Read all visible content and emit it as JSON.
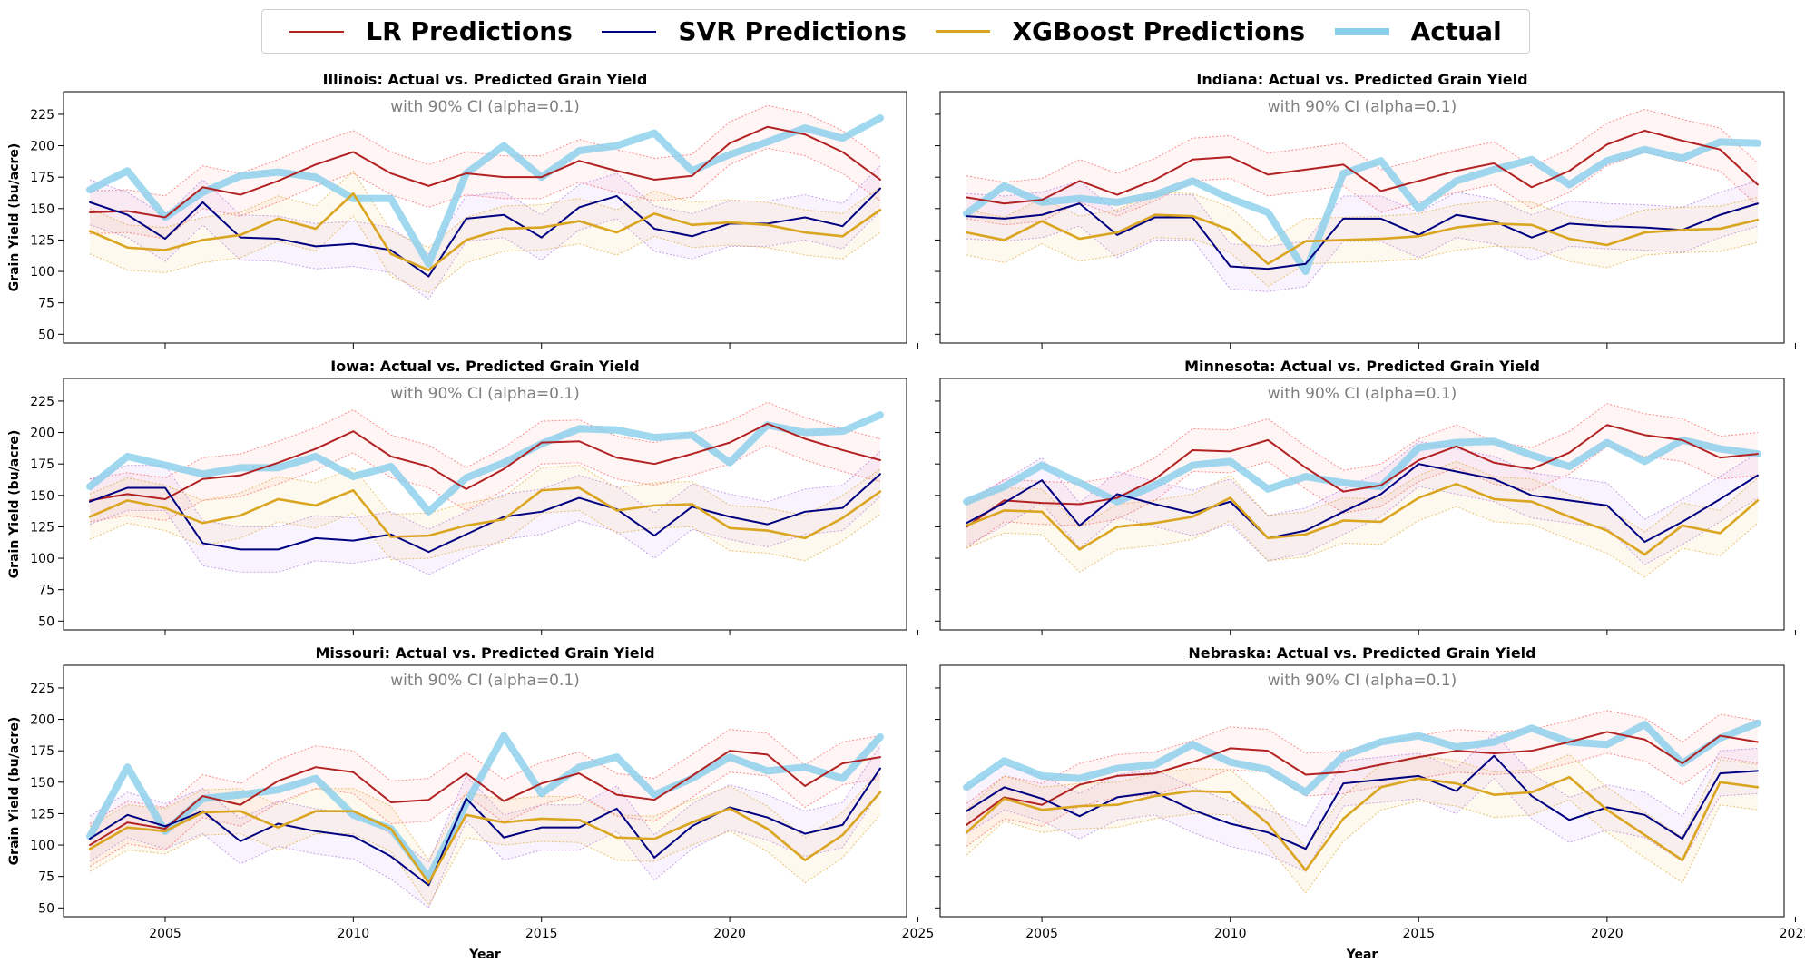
{
  "legend": {
    "items": [
      {
        "label": "LR Predictions",
        "color": "#b22222",
        "key": "lr"
      },
      {
        "label": "SVR Predictions",
        "color": "#000080",
        "key": "svr"
      },
      {
        "label": "XGBoost Predictions",
        "color": "#daa520",
        "key": "xgb"
      },
      {
        "label": "Actual",
        "color": "#87ceeb",
        "key": "actual"
      }
    ],
    "placement": "top-center"
  },
  "shared": {
    "subtitle": "with 90% CI (alpha=0.1)",
    "xlabel": "Year",
    "ylabel": "Grain Yield (bu/acre)",
    "xlim": [
      2002.3,
      2024.7
    ],
    "ylim": [
      43,
      243
    ],
    "xticks": [
      2005,
      2010,
      2015,
      2020,
      2025
    ],
    "yticks": [
      50,
      75,
      100,
      125,
      150,
      175,
      200,
      225
    ],
    "grid": false
  },
  "chart_data": [
    {
      "type": "line",
      "title": "Illinois: Actual vs. Predicted Grain Yield",
      "x": [
        2003,
        2004,
        2005,
        2006,
        2007,
        2008,
        2009,
        2010,
        2011,
        2012,
        2013,
        2014,
        2015,
        2016,
        2017,
        2018,
        2019,
        2020,
        2021,
        2022,
        2023,
        2024
      ],
      "series": [
        {
          "name": "LR Predictions",
          "key": "lr",
          "values": [
            147,
            148,
            143,
            167,
            161,
            172,
            185,
            195,
            178,
            168,
            178,
            175,
            175,
            188,
            180,
            173,
            176,
            202,
            215,
            209,
            195,
            173
          ],
          "ci_halfwidth": 17
        },
        {
          "name": "SVR Predictions",
          "key": "svr",
          "values": [
            155,
            145,
            126,
            155,
            127,
            126,
            120,
            122,
            117,
            96,
            142,
            145,
            127,
            151,
            160,
            134,
            128,
            138,
            138,
            143,
            136,
            166
          ],
          "ci_halfwidth": 18
        },
        {
          "name": "XGBoost Predictions",
          "key": "xgb",
          "values": [
            132,
            119,
            117,
            125,
            129,
            142,
            134,
            162,
            114,
            101,
            125,
            134,
            135,
            140,
            131,
            146,
            137,
            139,
            137,
            131,
            128,
            149
          ],
          "ci_halfwidth": 18
        },
        {
          "name": "Actual",
          "key": "actual",
          "values": [
            165,
            180,
            143,
            163,
            176,
            179,
            175,
            158,
            158,
            106,
            178,
            200,
            175,
            196,
            200,
            210,
            180,
            193,
            203,
            214,
            206,
            222
          ]
        }
      ]
    },
    {
      "type": "line",
      "title": "Indiana: Actual vs. Predicted Grain Yield",
      "x": [
        2003,
        2004,
        2005,
        2006,
        2007,
        2008,
        2009,
        2010,
        2011,
        2012,
        2013,
        2014,
        2015,
        2016,
        2017,
        2018,
        2019,
        2020,
        2021,
        2022,
        2023,
        2024
      ],
      "series": [
        {
          "name": "LR Predictions",
          "key": "lr",
          "values": [
            159,
            154,
            157,
            172,
            161,
            173,
            189,
            191,
            177,
            181,
            185,
            164,
            172,
            180,
            186,
            167,
            180,
            201,
            212,
            204,
            197,
            169
          ],
          "ci_halfwidth": 17
        },
        {
          "name": "SVR Predictions",
          "key": "svr",
          "values": [
            144,
            142,
            145,
            154,
            129,
            143,
            143,
            104,
            102,
            106,
            142,
            142,
            129,
            145,
            140,
            127,
            138,
            136,
            135,
            133,
            145,
            154
          ],
          "ci_halfwidth": 18
        },
        {
          "name": "XGBoost Predictions",
          "key": "xgb",
          "values": [
            131,
            125,
            140,
            126,
            131,
            145,
            144,
            133,
            106,
            124,
            125,
            126,
            128,
            135,
            138,
            137,
            126,
            121,
            131,
            133,
            134,
            141
          ],
          "ci_halfwidth": 18
        },
        {
          "name": "Actual",
          "key": "actual",
          "values": [
            146,
            168,
            155,
            158,
            155,
            161,
            172,
            158,
            147,
            100,
            178,
            188,
            150,
            172,
            181,
            189,
            169,
            188,
            197,
            190,
            203,
            202
          ]
        }
      ]
    },
    {
      "type": "line",
      "title": "Iowa: Actual vs. Predicted Grain Yield",
      "x": [
        2003,
        2004,
        2005,
        2006,
        2007,
        2008,
        2009,
        2010,
        2011,
        2012,
        2013,
        2014,
        2015,
        2016,
        2017,
        2018,
        2019,
        2020,
        2021,
        2022,
        2023,
        2024
      ],
      "series": [
        {
          "name": "LR Predictions",
          "key": "lr",
          "values": [
            146,
            151,
            147,
            163,
            166,
            176,
            187,
            201,
            181,
            173,
            155,
            171,
            192,
            193,
            180,
            175,
            183,
            192,
            207,
            195,
            186,
            178
          ],
          "ci_halfwidth": 17
        },
        {
          "name": "SVR Predictions",
          "key": "svr",
          "values": [
            145,
            156,
            156,
            112,
            107,
            107,
            116,
            114,
            119,
            105,
            119,
            133,
            137,
            148,
            139,
            118,
            141,
            133,
            127,
            137,
            140,
            167
          ],
          "ci_halfwidth": 18
        },
        {
          "name": "XGBoost Predictions",
          "key": "xgb",
          "values": [
            133,
            146,
            140,
            128,
            134,
            147,
            142,
            154,
            117,
            118,
            126,
            131,
            154,
            156,
            138,
            142,
            143,
            124,
            122,
            116,
            132,
            153
          ],
          "ci_halfwidth": 18
        },
        {
          "name": "Actual",
          "key": "actual",
          "values": [
            157,
            181,
            174,
            167,
            172,
            172,
            181,
            165,
            173,
            137,
            164,
            176,
            191,
            203,
            202,
            196,
            198,
            176,
            206,
            200,
            201,
            214
          ]
        }
      ]
    },
    {
      "type": "line",
      "title": "Minnesota: Actual vs. Predicted Grain Yield",
      "x": [
        2003,
        2004,
        2005,
        2006,
        2007,
        2008,
        2009,
        2010,
        2011,
        2012,
        2013,
        2014,
        2015,
        2016,
        2017,
        2018,
        2019,
        2020,
        2021,
        2022,
        2023,
        2024
      ],
      "series": [
        {
          "name": "LR Predictions",
          "key": "lr",
          "values": [
            125,
            146,
            144,
            143,
            148,
            163,
            186,
            185,
            194,
            172,
            153,
            158,
            178,
            189,
            176,
            171,
            184,
            206,
            198,
            194,
            180,
            183
          ],
          "ci_halfwidth": 17
        },
        {
          "name": "SVR Predictions",
          "key": "svr",
          "values": [
            128,
            144,
            162,
            126,
            151,
            143,
            136,
            145,
            116,
            122,
            137,
            151,
            175,
            169,
            163,
            150,
            146,
            142,
            113,
            129,
            147,
            166
          ],
          "ci_halfwidth": 18
        },
        {
          "name": "XGBoost Predictions",
          "key": "xgb",
          "values": [
            126,
            138,
            137,
            107,
            125,
            128,
            133,
            148,
            116,
            119,
            130,
            129,
            148,
            159,
            147,
            145,
            133,
            122,
            103,
            126,
            120,
            146
          ],
          "ci_halfwidth": 18
        },
        {
          "name": "Actual",
          "key": "actual",
          "values": [
            145,
            157,
            174,
            160,
            145,
            158,
            174,
            177,
            155,
            165,
            160,
            157,
            188,
            192,
            193,
            182,
            173,
            192,
            177,
            194,
            187,
            183
          ]
        }
      ]
    },
    {
      "type": "line",
      "title": "Missouri: Actual vs. Predicted Grain Yield",
      "x": [
        2003,
        2004,
        2005,
        2006,
        2007,
        2008,
        2009,
        2010,
        2011,
        2012,
        2013,
        2014,
        2015,
        2016,
        2017,
        2018,
        2019,
        2020,
        2021,
        2022,
        2023,
        2024
      ],
      "series": [
        {
          "name": "LR Predictions",
          "key": "lr",
          "values": [
            100,
            118,
            113,
            139,
            132,
            151,
            162,
            158,
            134,
            136,
            157,
            135,
            149,
            157,
            140,
            136,
            155,
            175,
            172,
            147,
            165,
            170
          ],
          "ci_halfwidth": 17
        },
        {
          "name": "SVR Predictions",
          "key": "svr",
          "values": [
            105,
            124,
            115,
            127,
            103,
            117,
            111,
            107,
            91,
            68,
            137,
            106,
            114,
            114,
            129,
            90,
            115,
            130,
            122,
            109,
            116,
            161
          ],
          "ci_halfwidth": 18
        },
        {
          "name": "XGBoost Predictions",
          "key": "xgb",
          "values": [
            97,
            114,
            111,
            126,
            127,
            114,
            127,
            127,
            113,
            70,
            124,
            118,
            121,
            120,
            106,
            105,
            118,
            129,
            113,
            88,
            108,
            142
          ],
          "ci_halfwidth": 18
        },
        {
          "name": "Actual",
          "key": "actual",
          "values": [
            107,
            162,
            111,
            137,
            140,
            144,
            153,
            124,
            113,
            74,
            133,
            187,
            141,
            162,
            170,
            140,
            153,
            170,
            159,
            162,
            153,
            186
          ]
        }
      ]
    },
    {
      "type": "line",
      "title": "Nebraska: Actual vs. Predicted Grain Yield",
      "x": [
        2003,
        2004,
        2005,
        2006,
        2007,
        2008,
        2009,
        2010,
        2011,
        2012,
        2013,
        2014,
        2015,
        2016,
        2017,
        2018,
        2019,
        2020,
        2021,
        2022,
        2023,
        2024
      ],
      "series": [
        {
          "name": "LR Predictions",
          "key": "lr",
          "values": [
            116,
            138,
            132,
            148,
            155,
            157,
            166,
            177,
            175,
            156,
            158,
            164,
            170,
            175,
            173,
            175,
            182,
            190,
            184,
            165,
            187,
            182
          ],
          "ci_halfwidth": 17
        },
        {
          "name": "SVR Predictions",
          "key": "svr",
          "values": [
            127,
            146,
            137,
            123,
            138,
            142,
            128,
            117,
            110,
            97,
            149,
            152,
            155,
            143,
            171,
            139,
            120,
            130,
            124,
            105,
            157,
            159
          ],
          "ci_halfwidth": 18
        },
        {
          "name": "XGBoost Predictions",
          "key": "xgb",
          "values": [
            110,
            137,
            128,
            131,
            132,
            139,
            143,
            142,
            117,
            80,
            121,
            146,
            153,
            149,
            140,
            142,
            154,
            128,
            108,
            88,
            150,
            146
          ],
          "ci_halfwidth": 18
        },
        {
          "name": "Actual",
          "key": "actual",
          "values": [
            146,
            167,
            155,
            153,
            161,
            164,
            180,
            166,
            160,
            142,
            171,
            182,
            187,
            178,
            182,
            193,
            182,
            180,
            196,
            165,
            185,
            197
          ]
        }
      ]
    }
  ]
}
